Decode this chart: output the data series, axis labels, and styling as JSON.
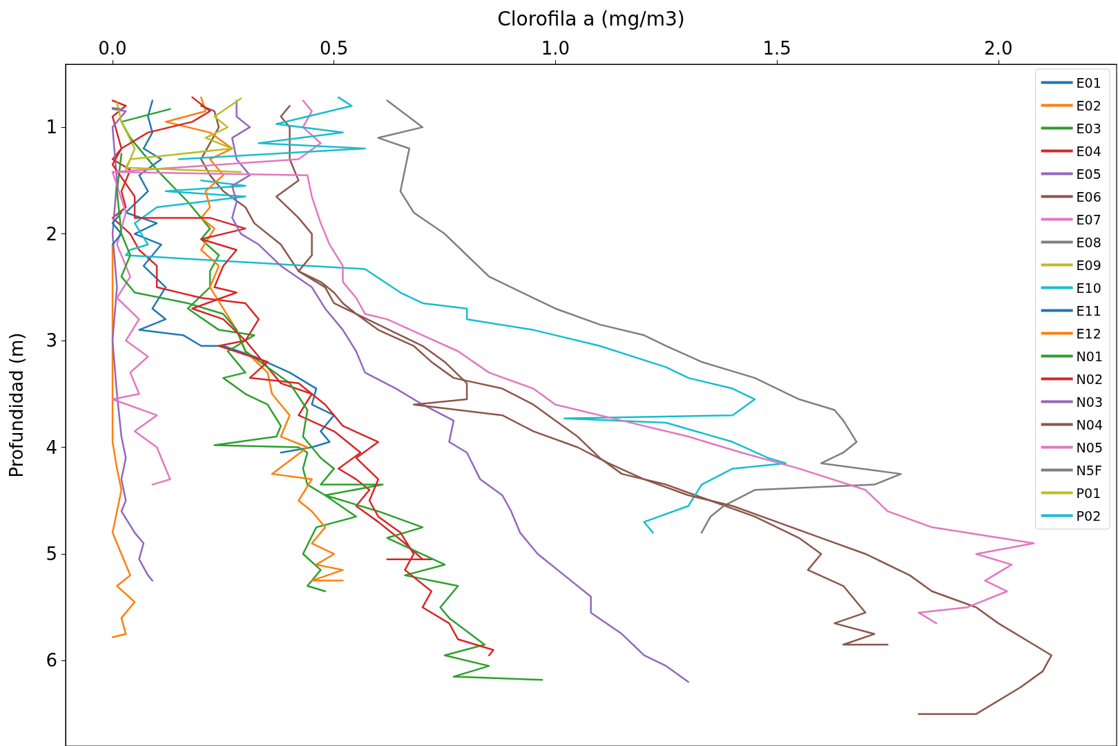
{
  "chart_data": {
    "type": "line",
    "xlabel": "Clorofila a (mg/m3)",
    "ylabel": "Profundidad (m)",
    "xlim": [
      -0.106,
      2.267
    ],
    "ylim": [
      6.8,
      0.41
    ],
    "xticks": [
      {
        "value": 0,
        "label": "0.0"
      },
      {
        "value": 0.5,
        "label": "0.5"
      },
      {
        "value": 1,
        "label": "1.0"
      },
      {
        "value": 1.5,
        "label": "1.5"
      },
      {
        "value": 2,
        "label": "2.0"
      }
    ],
    "yticks": [
      1,
      2,
      3,
      4,
      5,
      6
    ],
    "grid": false,
    "legend": "top right",
    "marker": "none",
    "line_style": "solid",
    "series": [
      {
        "name": "E01",
        "color": "#1f77b4",
        "x": [
          0.09,
          0.08,
          0.09,
          0.07,
          0.11,
          0.06,
          0.08,
          0.03,
          0.1,
          0.05,
          0.11,
          0.07,
          0.12,
          0.09,
          0.12,
          0.06,
          0.16,
          0.2,
          0.25,
          0.32,
          0.4,
          0.46,
          0.45,
          0.5,
          0.47,
          0.49,
          0.45,
          0.38
        ],
        "values": [
          0.75,
          0.9,
          1.05,
          1.2,
          1.3,
          1.45,
          1.6,
          1.8,
          1.9,
          2.0,
          2.1,
          2.3,
          2.5,
          2.7,
          2.8,
          2.9,
          2.95,
          3.05,
          3.05,
          3.15,
          3.3,
          3.45,
          3.6,
          3.7,
          3.85,
          3.95,
          4.0,
          4.05
        ]
      },
      {
        "name": "E02",
        "color": "#ff7f0e",
        "x": [
          0.0,
          0.0,
          0.0,
          0.0,
          0.0,
          0.01,
          0.02,
          0.01,
          0.0,
          0.02,
          0.04,
          0.01,
          0.05,
          0.02,
          0.03,
          0.0
        ],
        "values": [
          2.1,
          2.5,
          3.0,
          3.5,
          3.95,
          4.2,
          4.4,
          4.6,
          4.8,
          5.0,
          5.2,
          5.3,
          5.45,
          5.6,
          5.75,
          5.78
        ]
      },
      {
        "name": "E03",
        "color": "#2ca02c",
        "x": [
          0.13,
          0.02,
          0.04,
          0.1,
          0.17,
          0.22,
          0.2,
          0.24,
          0.22,
          0.22,
          0.17,
          0.24,
          0.32,
          0.26,
          0.3,
          0.25,
          0.3,
          0.35,
          0.38,
          0.37,
          0.23,
          0.42,
          0.44,
          0.43,
          0.44,
          0.48,
          0.55,
          0.46,
          0.43,
          0.47,
          0.44,
          0.48
        ],
        "values": [
          0.83,
          0.95,
          1.1,
          1.4,
          1.7,
          1.95,
          2.05,
          2.2,
          2.35,
          2.5,
          2.7,
          2.9,
          2.95,
          3.1,
          3.3,
          3.35,
          3.5,
          3.6,
          3.8,
          3.9,
          3.98,
          4.0,
          4.05,
          4.2,
          4.35,
          4.45,
          4.65,
          4.75,
          5.0,
          5.15,
          5.3,
          5.35
        ]
      },
      {
        "name": "E04",
        "color": "#d62728",
        "x": [
          0.0,
          0.03,
          0.0,
          0.02,
          0.0,
          0.04,
          0.02,
          0.03,
          0.0,
          0.04,
          0.06,
          0.1,
          0.1,
          0.2,
          0.3,
          0.33,
          0.3,
          0.33,
          0.38,
          0.45,
          0.42,
          0.5,
          0.56,
          0.51,
          0.55,
          0.58,
          0.55,
          0.6,
          0.66,
          0.7,
          0.62,
          0.72
        ],
        "values": [
          0.75,
          0.8,
          0.9,
          1.2,
          1.3,
          1.4,
          1.6,
          1.75,
          1.85,
          2.0,
          2.15,
          2.3,
          2.5,
          2.6,
          2.65,
          2.8,
          3.0,
          3.15,
          3.4,
          3.5,
          3.7,
          3.85,
          4.05,
          4.2,
          4.3,
          4.4,
          4.55,
          4.7,
          4.9,
          5.05,
          5.05,
          5.05
        ]
      },
      {
        "name": "E05",
        "color": "#9467bd",
        "x": [
          0.0,
          0.03,
          0.0,
          0.01,
          0.0,
          0.01,
          0.0,
          0.01,
          0.02,
          0.03,
          0.02,
          0.03,
          0.02,
          0.05,
          0.07,
          0.06,
          0.08,
          0.09
        ],
        "values": [
          0.83,
          0.85,
          1.0,
          1.5,
          2.0,
          2.5,
          3.0,
          3.5,
          3.9,
          4.1,
          4.3,
          4.5,
          4.6,
          4.8,
          4.9,
          5.05,
          5.2,
          5.25
        ]
      },
      {
        "name": "E06",
        "color": "#8c564b",
        "x": [
          0.2,
          0.23,
          0.24,
          0.2,
          0.22,
          0.25,
          0.3,
          0.32,
          0.38,
          0.42,
          0.47,
          0.5,
          0.52,
          0.55,
          0.6,
          0.68,
          0.72,
          0.77,
          0.88,
          0.95,
          1.0,
          1.05,
          1.1,
          1.15,
          1.25,
          1.35,
          1.45,
          1.55,
          1.6,
          1.57,
          1.65,
          1.7,
          1.63,
          1.72,
          1.65,
          1.75
        ],
        "values": [
          0.8,
          0.85,
          1.0,
          1.3,
          1.45,
          1.6,
          1.75,
          1.9,
          2.1,
          2.35,
          2.45,
          2.55,
          2.65,
          2.75,
          2.9,
          3.05,
          3.2,
          3.35,
          3.45,
          3.6,
          3.75,
          3.9,
          4.1,
          4.25,
          4.35,
          4.5,
          4.65,
          4.85,
          5.0,
          5.15,
          5.3,
          5.55,
          5.65,
          5.75,
          5.85,
          5.85
        ]
      },
      {
        "name": "E07",
        "color": "#e377c2",
        "x": [
          0.0,
          0.03,
          0.01,
          0.04,
          0.01,
          0.06,
          0.03,
          0.08,
          0.04,
          0.06,
          0.0,
          0.1,
          0.05,
          0.1,
          0.12,
          0.13,
          0.09
        ],
        "values": [
          1.42,
          1.8,
          2.1,
          2.4,
          2.6,
          2.8,
          3.0,
          3.15,
          3.3,
          3.5,
          3.55,
          3.7,
          3.85,
          4.0,
          4.2,
          4.3,
          4.35
        ]
      },
      {
        "name": "E08",
        "color": "#7f7f7f",
        "x": [
          0.62,
          0.7,
          0.6,
          0.67,
          0.66,
          0.65,
          0.68,
          0.75,
          0.8,
          0.85,
          0.9,
          0.95,
          1.0,
          1.1,
          1.2,
          1.25,
          1.33,
          1.45,
          1.5,
          1.55,
          1.63,
          1.65,
          1.68,
          1.65,
          1.6,
          1.78,
          1.72,
          1.45,
          1.38,
          1.35,
          1.33
        ],
        "values": [
          0.75,
          1.0,
          1.1,
          1.2,
          1.4,
          1.6,
          1.8,
          2.0,
          2.2,
          2.4,
          2.5,
          2.6,
          2.7,
          2.85,
          2.95,
          3.05,
          3.2,
          3.35,
          3.45,
          3.55,
          3.65,
          3.75,
          3.95,
          4.05,
          4.15,
          4.25,
          4.35,
          4.4,
          4.55,
          4.65,
          4.8
        ]
      },
      {
        "name": "E09",
        "color": "#bcbd22",
        "x": [
          0.01,
          0.02,
          0.05,
          0.03
        ],
        "values": [
          0.77,
          0.95,
          1.2,
          1.4
        ]
      },
      {
        "name": "E10",
        "color": "#17becf",
        "x": [
          0.2,
          0.3,
          0.12,
          0.3,
          0.1,
          0.05,
          0.08,
          0.04,
          0.03,
          0.57,
          0.65,
          0.7,
          0.8,
          0.8,
          0.95,
          1.1,
          1.25,
          1.3,
          1.4,
          1.45,
          1.4,
          1.02,
          1.25,
          1.4,
          1.48,
          1.52,
          1.4,
          1.33,
          1.3,
          1.2,
          1.22
        ],
        "values": [
          1.5,
          1.55,
          1.6,
          1.65,
          1.75,
          1.9,
          2.1,
          2.15,
          2.2,
          2.33,
          2.55,
          2.65,
          2.7,
          2.8,
          2.9,
          3.05,
          3.25,
          3.35,
          3.45,
          3.55,
          3.7,
          3.73,
          3.77,
          3.95,
          4.1,
          4.15,
          4.2,
          4.35,
          4.55,
          4.7,
          4.8
        ]
      },
      {
        "name": "E11",
        "color": "#1f77b4",
        "x": [
          0.02,
          0.0,
          0.02,
          0.0
        ],
        "values": [
          1.8,
          1.9,
          2.0,
          2.1
        ]
      },
      {
        "name": "E12",
        "color": "#ff7f0e",
        "x": [
          0.2,
          0.21,
          0.12,
          0.22,
          0.27,
          0.22,
          0.25,
          0.21,
          0.22,
          0.2,
          0.23,
          0.2,
          0.24,
          0.22,
          0.25,
          0.28,
          0.3,
          0.35,
          0.36,
          0.4,
          0.38,
          0.44,
          0.36,
          0.45,
          0.42,
          0.45,
          0.48,
          0.45,
          0.5,
          0.46,
          0.52,
          0.45,
          0.52
        ],
        "values": [
          0.72,
          0.85,
          0.95,
          1.05,
          1.2,
          1.3,
          1.45,
          1.6,
          1.75,
          1.85,
          1.95,
          2.15,
          2.3,
          2.5,
          2.7,
          2.9,
          3.1,
          3.3,
          3.5,
          3.7,
          3.9,
          4.0,
          4.25,
          4.3,
          4.5,
          4.6,
          4.75,
          4.9,
          5.0,
          5.1,
          5.15,
          5.25,
          5.25
        ]
      },
      {
        "name": "N01",
        "color": "#2ca02c",
        "x": [
          0.02,
          0.01,
          0.02,
          0.04,
          0.02,
          0.05,
          0.17,
          0.25,
          0.28,
          0.3,
          0.35,
          0.4,
          0.44,
          0.43,
          0.47,
          0.5,
          0.47,
          0.61,
          0.48,
          0.52,
          0.6,
          0.7,
          0.62,
          0.75,
          0.66,
          0.78,
          0.74,
          0.76,
          0.84,
          0.75,
          0.85,
          0.77,
          0.97
        ],
        "values": [
          1.25,
          1.6,
          2.0,
          2.2,
          2.4,
          2.55,
          2.65,
          2.75,
          2.9,
          3.1,
          3.25,
          3.4,
          3.65,
          3.9,
          4.1,
          4.2,
          4.35,
          4.35,
          4.45,
          4.5,
          4.6,
          4.75,
          4.85,
          5.1,
          5.2,
          5.3,
          5.5,
          5.6,
          5.85,
          5.95,
          6.05,
          6.15,
          6.18
        ]
      },
      {
        "name": "N02",
        "color": "#d62728",
        "x": [
          0.18,
          0.22,
          0.18,
          0.08,
          0.02,
          0.0,
          0.05,
          0.05,
          0.22,
          0.3,
          0.2,
          0.28,
          0.25,
          0.23,
          0.28,
          0.18,
          0.25,
          0.3,
          0.24,
          0.35,
          0.31,
          0.42,
          0.48,
          0.52,
          0.6,
          0.55,
          0.6,
          0.58,
          0.6,
          0.65,
          0.68,
          0.66,
          0.72,
          0.7,
          0.76,
          0.78,
          0.86,
          0.85
        ],
        "values": [
          0.72,
          0.85,
          0.95,
          1.05,
          1.2,
          1.35,
          1.65,
          1.85,
          1.85,
          1.95,
          2.05,
          2.15,
          2.3,
          2.5,
          2.55,
          2.7,
          2.8,
          3.0,
          3.05,
          3.2,
          3.35,
          3.4,
          3.6,
          3.8,
          3.95,
          4.1,
          4.3,
          4.5,
          4.65,
          4.8,
          5.0,
          5.15,
          5.35,
          5.5,
          5.65,
          5.8,
          5.9,
          5.95
        ]
      },
      {
        "name": "N03",
        "color": "#9467bd",
        "x": [
          0.28,
          0.28,
          0.31,
          0.27,
          0.28,
          0.31,
          0.27,
          0.28,
          0.27,
          0.29,
          0.33,
          0.38,
          0.45,
          0.48,
          0.52,
          0.55,
          0.57,
          0.64,
          0.7,
          0.77,
          0.76,
          0.8,
          0.83,
          0.88,
          0.9,
          0.92,
          0.96,
          1.02,
          1.08,
          1.08,
          1.15,
          1.2,
          1.25,
          1.3
        ],
        "values": [
          0.75,
          0.9,
          1.0,
          1.1,
          1.3,
          1.45,
          1.55,
          1.7,
          1.85,
          2.0,
          2.1,
          2.3,
          2.5,
          2.7,
          2.9,
          3.1,
          3.3,
          3.45,
          3.6,
          3.75,
          3.95,
          4.05,
          4.3,
          4.45,
          4.6,
          4.8,
          5.0,
          5.2,
          5.4,
          5.55,
          5.75,
          5.95,
          6.05,
          6.2
        ]
      },
      {
        "name": "N04",
        "color": "#8c564b",
        "x": [
          0.4,
          0.38,
          0.4,
          0.4,
          0.42,
          0.37,
          0.42,
          0.45,
          0.45,
          0.42,
          0.48,
          0.5,
          0.55,
          0.6,
          0.7,
          0.75,
          0.8,
          0.8,
          0.68,
          0.88,
          0.95,
          1.05,
          1.12,
          1.2,
          1.3,
          1.4,
          1.5,
          1.6,
          1.7,
          1.8,
          1.85,
          1.95,
          2.0,
          2.08,
          2.12,
          2.1,
          2.05,
          1.95,
          1.82
        ],
        "values": [
          0.8,
          0.9,
          1.0,
          1.3,
          1.5,
          1.65,
          1.85,
          2.0,
          2.2,
          2.35,
          2.5,
          2.65,
          2.75,
          2.85,
          3.05,
          3.2,
          3.4,
          3.55,
          3.6,
          3.7,
          3.85,
          4.0,
          4.15,
          4.3,
          4.45,
          4.55,
          4.7,
          4.85,
          5.0,
          5.2,
          5.35,
          5.5,
          5.65,
          5.85,
          5.95,
          6.1,
          6.25,
          6.5,
          6.5
        ]
      },
      {
        "name": "N05",
        "color": "#e377c2",
        "x": [
          0.43,
          0.45,
          0.43,
          0.47,
          0.42,
          0.0,
          0.44,
          0.45,
          0.47,
          0.49,
          0.52,
          0.52,
          0.55,
          0.57,
          0.62,
          0.7,
          0.78,
          0.85,
          0.95,
          1.0,
          1.15,
          1.3,
          1.42,
          1.55,
          1.7,
          1.75,
          1.85,
          2.08,
          1.95,
          2.03,
          1.97,
          2.02,
          1.93,
          1.82,
          1.86
        ],
        "values": [
          0.75,
          0.85,
          1.0,
          1.15,
          1.3,
          1.42,
          1.45,
          1.65,
          1.9,
          2.1,
          2.3,
          2.45,
          2.6,
          2.75,
          2.8,
          2.95,
          3.1,
          3.3,
          3.45,
          3.6,
          3.75,
          3.9,
          4.05,
          4.2,
          4.4,
          4.6,
          4.75,
          4.9,
          5.0,
          5.1,
          5.25,
          5.35,
          5.5,
          5.55,
          5.65
        ]
      },
      {
        "name": "N5F",
        "color": "#7f7f7f",
        "x": [
          0.0,
          0.02
        ],
        "values": [
          0.82,
          0.83
        ]
      },
      {
        "name": "P01",
        "color": "#bcbd22",
        "x": [
          0.29,
          0.23,
          0.26,
          0.21,
          0.27,
          0.04,
          0.03,
          0.29
        ],
        "values": [
          0.73,
          0.9,
          1.0,
          1.1,
          1.2,
          1.3,
          1.38,
          1.42
        ]
      },
      {
        "name": "P02",
        "color": "#17becf",
        "x": [
          0.51,
          0.54,
          0.37,
          0.52,
          0.33,
          0.57,
          0.15
        ],
        "values": [
          0.72,
          0.8,
          0.97,
          1.05,
          1.15,
          1.2,
          1.3
        ]
      }
    ]
  }
}
